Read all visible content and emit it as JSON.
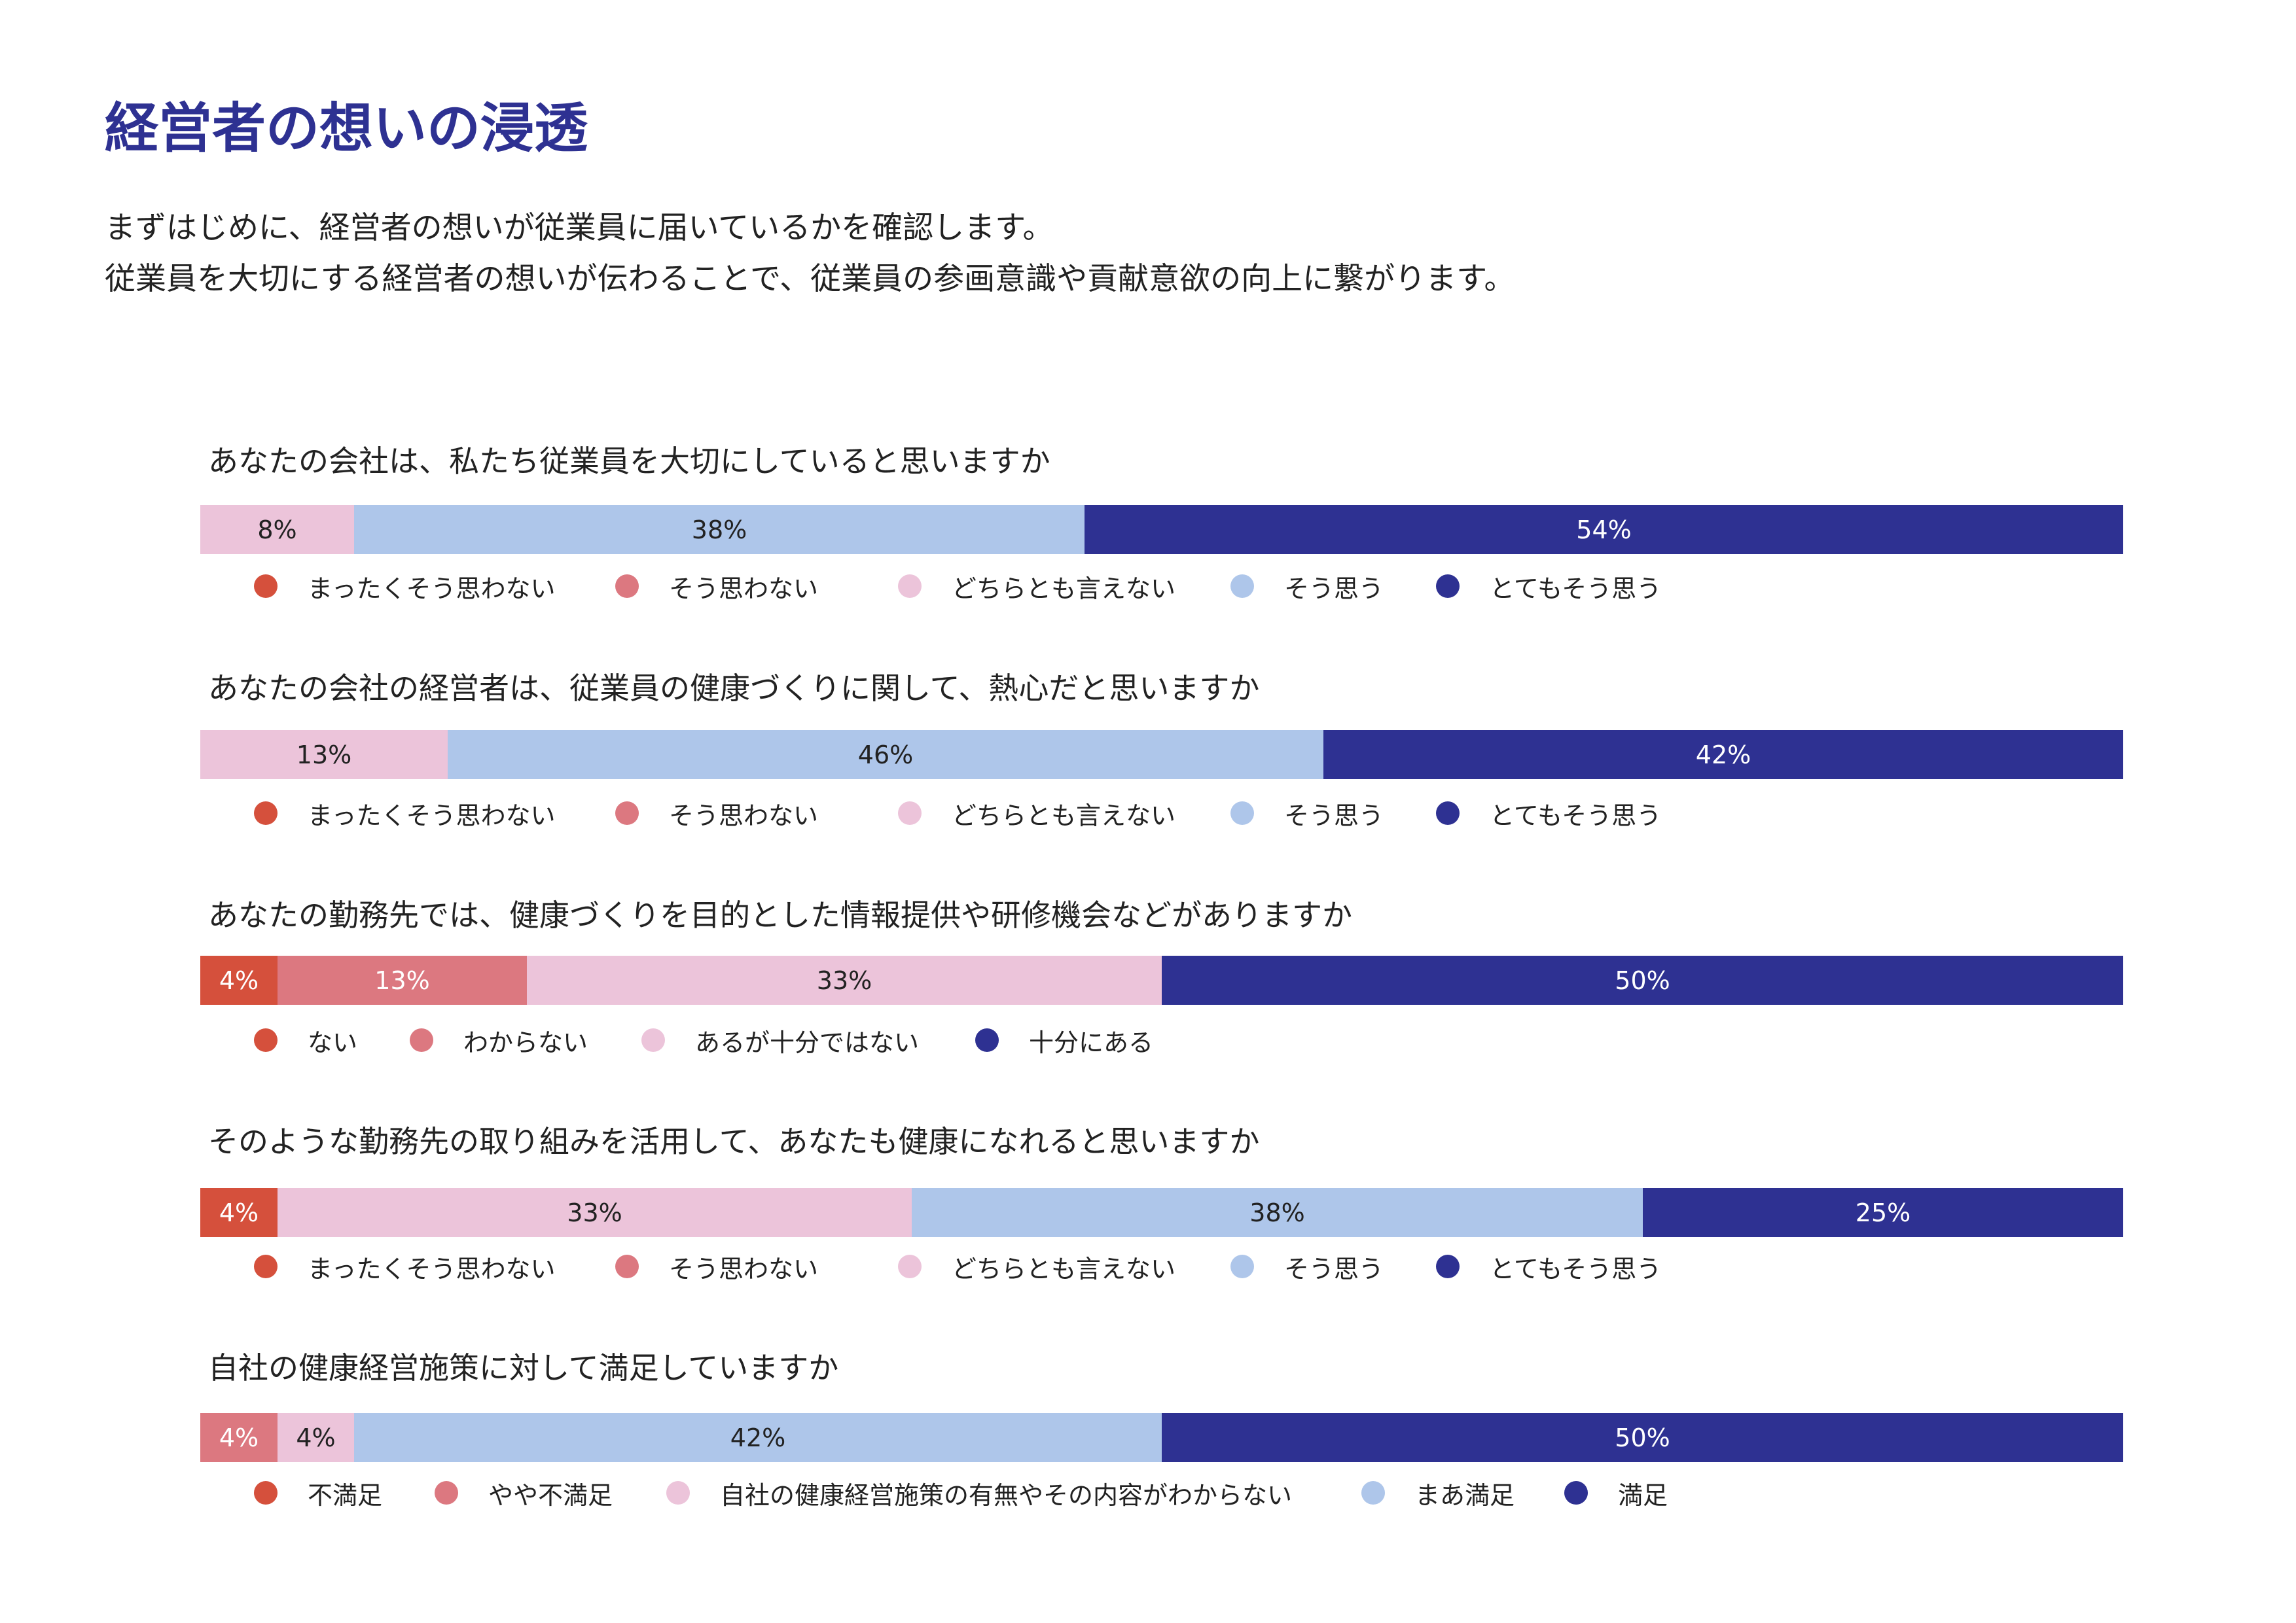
{
  "page": {
    "title": "経営者の想いの浸透",
    "intro": [
      "まずはじめに、経営者の想いが従業員に届いているかを確認します。",
      "従業員を大切にする経営者の想いが伝わることで、従業員の参画意識や貢献意欲の向上に繋がります。"
    ]
  },
  "colors": {
    "c1": "#d5503c",
    "c2": "#dc7880",
    "c3": "#ecc4da",
    "c4": "#aec6ea",
    "c5": "#2e3192",
    "dark_text": "#222222",
    "light_text": "#ffffff"
  },
  "chart_data": [
    {
      "type": "bar",
      "orientation": "horizontal-stacked-100",
      "title": "あなたの会社は、私たち従業員を大切にしていると思いますか",
      "categories": [
        "まったくそう思わない",
        "そう思わない",
        "どちらとも言えない",
        "そう思う",
        "とてもそう思う"
      ],
      "values": [
        0,
        0,
        8,
        38,
        54
      ],
      "labels": [
        "",
        "",
        "8%",
        "38%",
        "54%"
      ]
    },
    {
      "type": "bar",
      "orientation": "horizontal-stacked-100",
      "title": "あなたの会社の経営者は、従業員の健康づくりに関して、熱心だと思いますか",
      "categories": [
        "まったくそう思わない",
        "そう思わない",
        "どちらとも言えない",
        "そう思う",
        "とてもそう思う"
      ],
      "values": [
        0,
        0,
        13,
        46,
        42
      ],
      "labels": [
        "",
        "",
        "13%",
        "46%",
        "42%"
      ]
    },
    {
      "type": "bar",
      "orientation": "horizontal-stacked-100",
      "title": "あなたの勤務先では、健康づくりを目的とした情報提供や研修機会などがありますか",
      "categories": [
        "ない",
        "わからない",
        "あるが十分ではない",
        "十分にある"
      ],
      "values": [
        4,
        13,
        33,
        50
      ],
      "labels": [
        "4%",
        "13%",
        "33%",
        "50%"
      ]
    },
    {
      "type": "bar",
      "orientation": "horizontal-stacked-100",
      "title": "そのような勤務先の取り組みを活用して、あなたも健康になれると思いますか",
      "categories": [
        "まったくそう思わない",
        "そう思わない",
        "どちらとも言えない",
        "そう思う",
        "とてもそう思う"
      ],
      "values": [
        4,
        0,
        33,
        38,
        25
      ],
      "labels": [
        "4%",
        "",
        "33%",
        "38%",
        "25%"
      ]
    },
    {
      "type": "bar",
      "orientation": "horizontal-stacked-100",
      "title": "自社の健康経営施策に対して満足していますか",
      "categories": [
        "不満足",
        "やや不満足",
        "自社の健康経営施策の有無やその内容がわからない",
        "まあ満足",
        "満足"
      ],
      "values": [
        0,
        4,
        4,
        42,
        50
      ],
      "labels": [
        "",
        "4%",
        "4%",
        "42%",
        "50%"
      ]
    }
  ]
}
